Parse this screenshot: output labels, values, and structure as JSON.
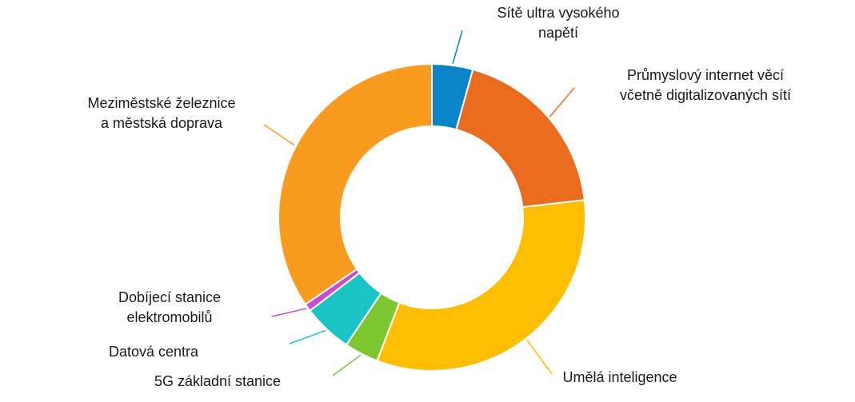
{
  "chart_data": {
    "type": "pie",
    "donut": true,
    "title": "",
    "legend": "none",
    "slices": [
      {
        "name": "Sítě ultra vysokého napětí",
        "lines": [
          "Sítě ultra vysokého",
          "napětí"
        ],
        "value": 4.3,
        "color": "#0a84c8"
      },
      {
        "name": "Průmyslový internet věcí včetně digitalizovaných sítí",
        "lines": [
          "Průmyslový internet věcí",
          "včetně digitalizovaných sítí"
        ],
        "value": 18.9,
        "color": "#ea6b1e"
      },
      {
        "name": "Umělá inteligence",
        "lines": [
          "Umělá inteligence"
        ],
        "value": 32.6,
        "color": "#fdbd00"
      },
      {
        "name": "5G základní stanice",
        "lines": [
          "5G základní stanice"
        ],
        "value": 3.6,
        "color": "#7cc62f"
      },
      {
        "name": "Datová centra",
        "lines": [
          "Datová centra"
        ],
        "value": 5.2,
        "color": "#18c4c4"
      },
      {
        "name": "Dobíjecí stanice elektromobilů",
        "lines": [
          "Dobíjecí stanice",
          "elektromobilů"
        ],
        "value": 0.8,
        "color": "#c64ad6"
      },
      {
        "name": "Meziměstské železnice a městská doprava",
        "lines": [
          "Meziměstské železnice",
          "a městská doprava"
        ],
        "value": 34.6,
        "color": "#f99b1e"
      }
    ]
  }
}
